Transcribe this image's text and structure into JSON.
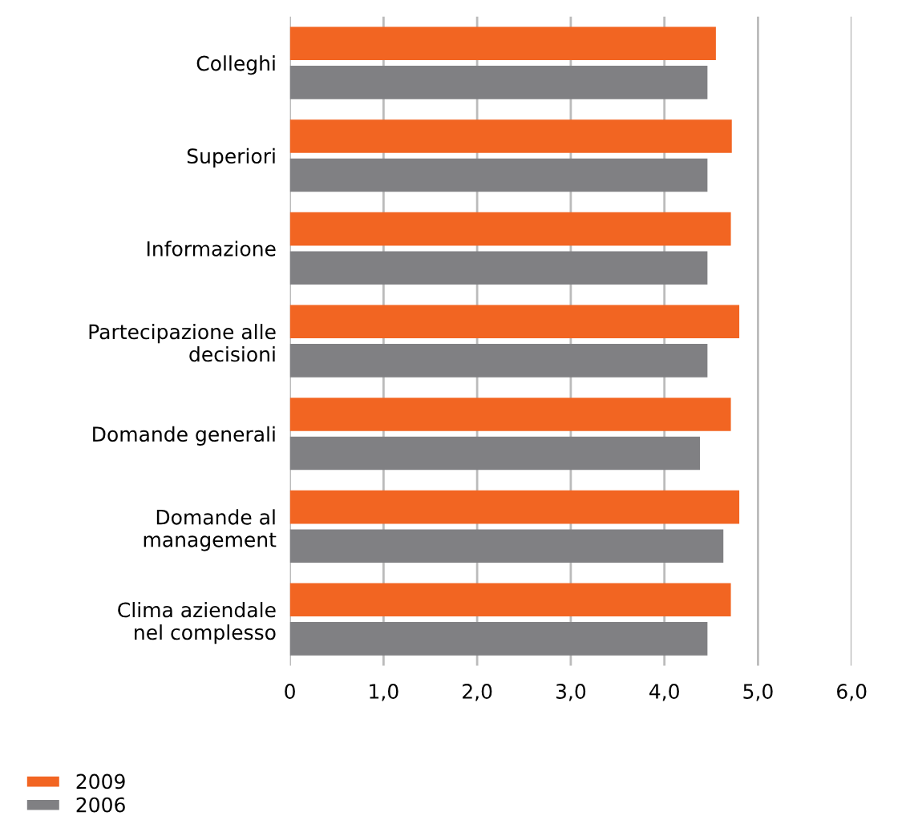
{
  "chart_data": {
    "type": "bar",
    "orientation": "horizontal",
    "categories": [
      "Colleghi",
      "Superiori",
      "Informazione",
      "Partecipazione alle\ndecisioni",
      "Domande generali",
      "Domande al\nmanagement",
      "Clima aziendale\nnel complesso"
    ],
    "series": [
      {
        "name": "2009",
        "color": "#f26522",
        "values": [
          4.55,
          4.72,
          4.71,
          4.8,
          4.71,
          4.8,
          4.71
        ]
      },
      {
        "name": "2006",
        "color": "#808083",
        "values": [
          4.46,
          4.46,
          4.46,
          4.46,
          4.38,
          4.63,
          4.46
        ]
      }
    ],
    "xlim": [
      0,
      6
    ],
    "xticks": [
      0,
      {
        "value": 1,
        "label": "1,0"
      },
      {
        "value": 2,
        "label": "2,0"
      },
      {
        "value": 3,
        "label": "3,0"
      },
      {
        "value": 4,
        "label": "4,0"
      },
      {
        "value": 5,
        "label": "5,0"
      },
      {
        "value": 6,
        "label": "6,0"
      }
    ],
    "grid": "x",
    "legend": "bottom left"
  }
}
